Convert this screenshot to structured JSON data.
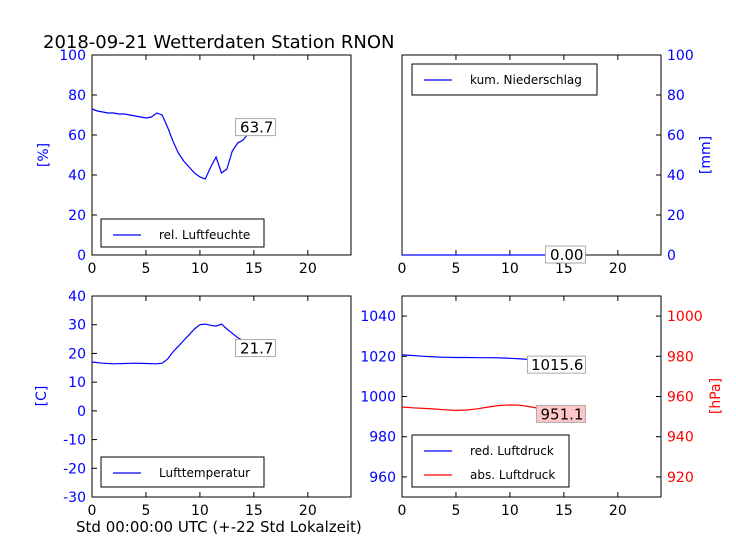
{
  "title": "2018-09-21 Wetterdaten Station RNON",
  "xlabel": "Std 00:00:00 UTC (+-22 Std Lokalzeit)",
  "colors": {
    "blue": "#0000ff",
    "red": "#ff0000",
    "black": "#000000",
    "frame": "#000000",
    "ann_red_bg": "#ffc8c8"
  },
  "chart_data": [
    {
      "type": "line",
      "panel": "top-left",
      "ylabel": "[%]",
      "xlim": [
        0,
        24
      ],
      "ylim": [
        0,
        100
      ],
      "xticks": [
        0,
        5,
        10,
        15,
        20
      ],
      "yticks": [
        0,
        20,
        40,
        60,
        80,
        100
      ],
      "legend": "lower-left",
      "series": [
        {
          "name": "rel. Luftfeuchte",
          "color": "#0000ff",
          "x": [
            0,
            0.5,
            1,
            1.5,
            2,
            2.5,
            3,
            3.5,
            4,
            4.5,
            5,
            5.5,
            6,
            6.5,
            7,
            7.5,
            8,
            8.5,
            9,
            9.5,
            10,
            10.5,
            11,
            11.5,
            12,
            12.5,
            13,
            13.5,
            14,
            14.5,
            15,
            15.5,
            16,
            16.5,
            17
          ],
          "y": [
            73,
            72,
            71.5,
            71,
            71,
            70.5,
            70.5,
            70,
            69.5,
            69,
            68.5,
            69,
            71,
            70,
            64,
            57,
            51,
            47,
            44,
            41,
            39,
            38,
            44,
            49,
            41,
            43,
            52,
            56,
            57.5,
            61,
            63,
            64.5,
            65,
            64,
            63.7
          ]
        }
      ],
      "annotation": {
        "text": "63.7",
        "x": 17,
        "y": 63.7
      }
    },
    {
      "type": "line",
      "panel": "top-right",
      "ylabel": "[mm]",
      "xlim": [
        0,
        24
      ],
      "ylim": [
        0,
        100
      ],
      "xticks": [
        0,
        5,
        10,
        15,
        20
      ],
      "yticks": [
        0,
        20,
        40,
        60,
        80,
        100
      ],
      "legend": "upper-left",
      "series": [
        {
          "name": "kum. Niederschlag",
          "color": "#0000ff",
          "x": [
            0,
            17
          ],
          "y": [
            0,
            0
          ]
        }
      ],
      "annotation": {
        "text": "0.00",
        "x": 17,
        "y": 0
      }
    },
    {
      "type": "line",
      "panel": "bottom-left",
      "ylabel": "[C]",
      "xlim": [
        0,
        24
      ],
      "ylim": [
        -30,
        40
      ],
      "xticks": [
        0,
        5,
        10,
        15,
        20
      ],
      "yticks": [
        -30,
        -20,
        -10,
        0,
        10,
        20,
        30,
        40
      ],
      "legend": "lower-left",
      "series": [
        {
          "name": "Lufttemperatur",
          "color": "#0000ff",
          "x": [
            0,
            1,
            2,
            3,
            4,
            5,
            6,
            6.5,
            7,
            7.5,
            8,
            8.5,
            9,
            9.5,
            10,
            10.5,
            11,
            11.5,
            12,
            12.5,
            13,
            13.5,
            14,
            14.5,
            15,
            15.5,
            16,
            16.5,
            17
          ],
          "y": [
            17,
            16.6,
            16.4,
            16.5,
            16.6,
            16.5,
            16.4,
            16.6,
            18,
            20.5,
            22.5,
            24.5,
            26.5,
            28.5,
            30,
            30.2,
            29.8,
            29.5,
            30.2,
            28.5,
            27,
            25.5,
            24.5,
            23.5,
            23,
            22.5,
            22.2,
            21.9,
            21.7
          ]
        }
      ],
      "annotation": {
        "text": "21.7",
        "x": 17,
        "y": 21.7
      }
    },
    {
      "type": "line",
      "panel": "bottom-right",
      "ylabel": "[hPa]",
      "xlim": [
        0,
        24
      ],
      "ylim_left": [
        950,
        1050
      ],
      "ylim_right": [
        910,
        1010
      ],
      "xticks": [
        0,
        5,
        10,
        15,
        20
      ],
      "yticks_left": [
        960,
        980,
        1000,
        1020,
        1040
      ],
      "yticks_right": [
        920,
        940,
        960,
        980,
        1000
      ],
      "legend": "lower-left",
      "series": [
        {
          "name": "red. Luftdruck",
          "color": "#0000ff",
          "axis": "left",
          "x": [
            0,
            1,
            2,
            3,
            4,
            5,
            6,
            7,
            8,
            9,
            10,
            11,
            12,
            13,
            14,
            15,
            16,
            17
          ],
          "y": [
            1020.7,
            1020.4,
            1020,
            1019.7,
            1019.5,
            1019.4,
            1019.4,
            1019.3,
            1019.3,
            1019.2,
            1019,
            1018.7,
            1018.3,
            1017.7,
            1017,
            1016.4,
            1016,
            1015.6
          ]
        },
        {
          "name": "abs. Luftdruck",
          "color": "#ff0000",
          "axis": "right",
          "x": [
            0,
            1,
            2,
            3,
            4,
            5,
            6,
            7,
            8,
            9,
            10,
            11,
            12,
            13,
            14,
            15,
            16,
            17
          ],
          "y": [
            954.8,
            954.4,
            954.1,
            953.8,
            953.4,
            953.1,
            953.3,
            953.9,
            954.8,
            955.5,
            955.8,
            955.6,
            954.8,
            953.8,
            952.8,
            952,
            951.5,
            951.1
          ]
        }
      ],
      "annotations": [
        {
          "text": "1015.6",
          "x": 17,
          "y": 1015.6,
          "axis": "left"
        },
        {
          "text": "951.1",
          "x": 17,
          "y": 951.1,
          "axis": "right"
        }
      ]
    }
  ]
}
